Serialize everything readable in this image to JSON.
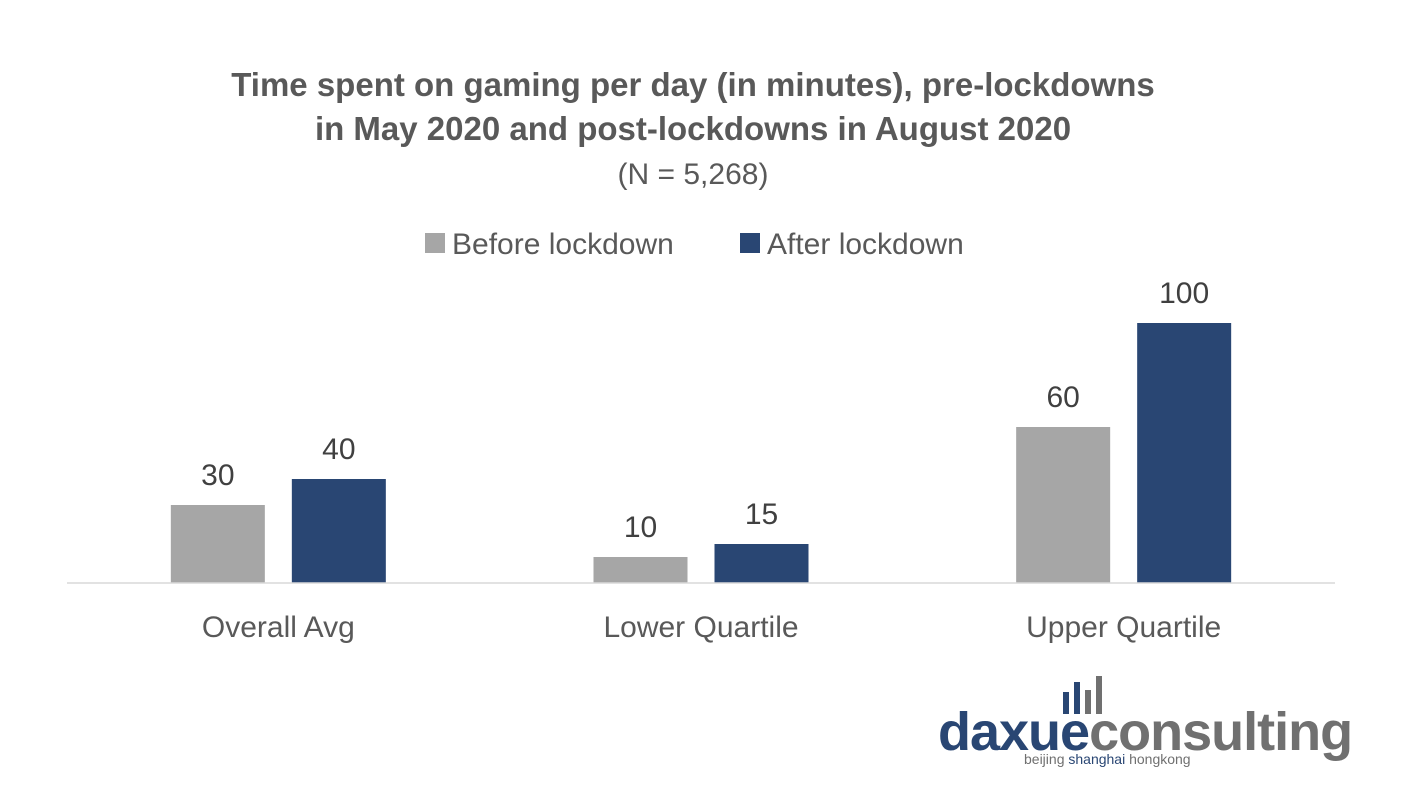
{
  "chart_data": {
    "type": "bar",
    "title": [
      "Time spent on gaming per day (in minutes), pre-lockdowns",
      "in May 2020 and post-lockdowns in August 2020"
    ],
    "subtitle": "(N = 5,268)",
    "categories": [
      "Overall Avg",
      "Lower Quartile",
      "Upper Quartile"
    ],
    "series": [
      {
        "name": "Before lockdown",
        "values": [
          30,
          10,
          60
        ],
        "color": "#a6a6a6"
      },
      {
        "name": "After lockdown",
        "values": [
          40,
          15,
          100
        ],
        "color": "#294673"
      }
    ],
    "ylim": [
      0,
      100
    ],
    "grid": false,
    "legend_position": "top-center",
    "data_labels": true
  },
  "logo": {
    "part1": "daxue",
    "part2": "consulting",
    "tag_cities": [
      "beijing",
      "shanghai",
      "hongkong"
    ],
    "color_primary": "#294673",
    "color_secondary": "#707070"
  }
}
